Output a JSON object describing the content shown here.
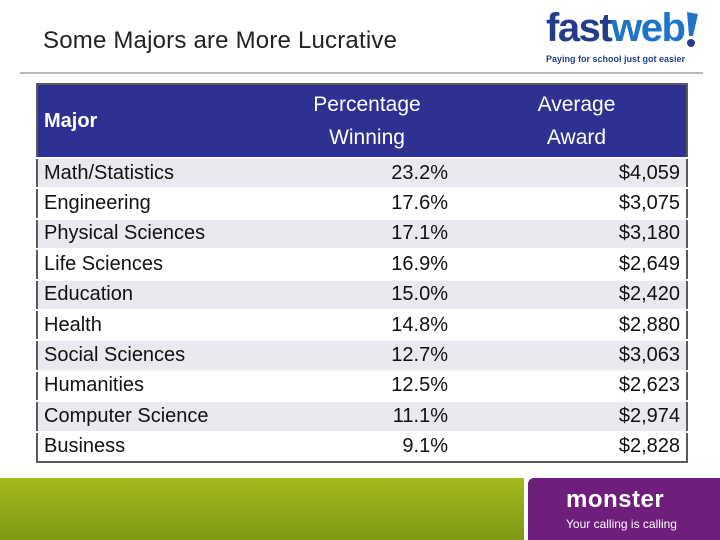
{
  "slide": {
    "title": "Some Majors are More Lucrative"
  },
  "logo": {
    "part1": "fast",
    "part2": "web",
    "bang": "!",
    "tagline": "Paying for school just got easier"
  },
  "table": {
    "headers": [
      "Major",
      "Percentage\nWinning",
      "Average\nAward"
    ],
    "header_major": "Major",
    "header_pct_l1": "Percentage",
    "header_pct_l2": "Winning",
    "header_awd_l1": "Average",
    "header_awd_l2": "Award",
    "rows": [
      {
        "major": "Math/Statistics",
        "pct": "23.2%",
        "award": "$4,059"
      },
      {
        "major": "Engineering",
        "pct": "17.6%",
        "award": "$3,075"
      },
      {
        "major": "Physical Sciences",
        "pct": "17.1%",
        "award": "$3,180"
      },
      {
        "major": "Life Sciences",
        "pct": "16.9%",
        "award": "$2,649"
      },
      {
        "major": "Education",
        "pct": "15.0%",
        "award": "$2,420"
      },
      {
        "major": "Health",
        "pct": "14.8%",
        "award": "$2,880"
      },
      {
        "major": "Social Sciences",
        "pct": "12.7%",
        "award": "$3,063"
      },
      {
        "major": "Humanities",
        "pct": "12.5%",
        "award": "$2,623"
      },
      {
        "major": "Computer Science",
        "pct": "11.1%",
        "award": "$2,974"
      },
      {
        "major": "Business",
        "pct": "9.1%",
        "award": "$2,828"
      }
    ]
  },
  "footer": {
    "brand": "monster",
    "slogan": "Your calling is calling"
  },
  "colors": {
    "header_bg": "#2e3192",
    "footer_green": "#94ab1a",
    "footer_purple": "#6e1e7b",
    "logo_dark": "#243d8a",
    "logo_light": "#1f74c9"
  }
}
